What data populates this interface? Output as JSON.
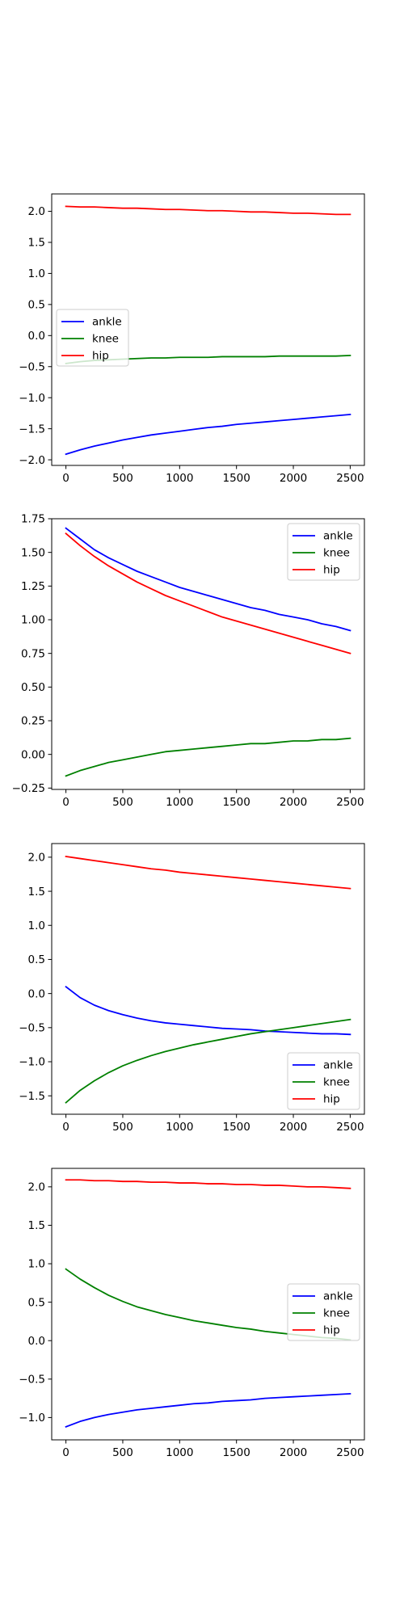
{
  "chart_data": [
    {
      "type": "line",
      "title": "",
      "xlabel": "",
      "ylabel": "",
      "xlim": [
        -125,
        2625
      ],
      "ylim": [
        -2.09,
        2.28
      ],
      "xticks": [
        0,
        500,
        1000,
        1500,
        2000,
        2500
      ],
      "yticks": [
        -2.0,
        -1.5,
        -1.0,
        -0.5,
        0.0,
        0.5,
        1.0,
        1.5,
        2.0
      ],
      "ytick_labels": [
        "−2.0",
        "−1.5",
        "−1.0",
        "−0.5",
        "0.0",
        "0.5",
        "1.0",
        "1.5",
        "2.0"
      ],
      "legend_position": "center-left",
      "grid": false,
      "x": [
        0,
        125,
        250,
        375,
        500,
        625,
        750,
        875,
        1000,
        1125,
        1250,
        1375,
        1500,
        1625,
        1750,
        1875,
        2000,
        2125,
        2250,
        2375,
        2500
      ],
      "series": [
        {
          "name": "ankle",
          "color": "#0000ff",
          "values": [
            -1.91,
            -1.84,
            -1.78,
            -1.73,
            -1.68,
            -1.64,
            -1.6,
            -1.57,
            -1.54,
            -1.51,
            -1.48,
            -1.46,
            -1.43,
            -1.41,
            -1.39,
            -1.37,
            -1.35,
            -1.33,
            -1.31,
            -1.29,
            -1.27
          ]
        },
        {
          "name": "knee",
          "color": "#008000",
          "values": [
            -0.45,
            -0.42,
            -0.4,
            -0.39,
            -0.38,
            -0.37,
            -0.36,
            -0.36,
            -0.35,
            -0.35,
            -0.35,
            -0.34,
            -0.34,
            -0.34,
            -0.34,
            -0.33,
            -0.33,
            -0.33,
            -0.33,
            -0.33,
            -0.32
          ]
        },
        {
          "name": "hip",
          "color": "#ff0000",
          "values": [
            2.08,
            2.07,
            2.07,
            2.06,
            2.05,
            2.05,
            2.04,
            2.03,
            2.03,
            2.02,
            2.01,
            2.01,
            2.0,
            1.99,
            1.99,
            1.98,
            1.97,
            1.97,
            1.96,
            1.95,
            1.95
          ]
        }
      ]
    },
    {
      "type": "line",
      "title": "",
      "xlabel": "",
      "ylabel": "",
      "xlim": [
        -125,
        2625
      ],
      "ylim": [
        -0.26,
        1.75
      ],
      "xticks": [
        0,
        500,
        1000,
        1500,
        2000,
        2500
      ],
      "yticks": [
        -0.25,
        0.0,
        0.25,
        0.5,
        0.75,
        1.0,
        1.25,
        1.5,
        1.75
      ],
      "ytick_labels": [
        "−0.25",
        "0.00",
        "0.25",
        "0.50",
        "0.75",
        "1.00",
        "1.25",
        "1.50",
        "1.75"
      ],
      "legend_position": "upper-right",
      "grid": false,
      "x": [
        0,
        125,
        250,
        375,
        500,
        625,
        750,
        875,
        1000,
        1125,
        1250,
        1375,
        1500,
        1625,
        1750,
        1875,
        2000,
        2125,
        2250,
        2375,
        2500
      ],
      "series": [
        {
          "name": "ankle",
          "color": "#0000ff",
          "values": [
            1.68,
            1.6,
            1.52,
            1.46,
            1.41,
            1.36,
            1.32,
            1.28,
            1.24,
            1.21,
            1.18,
            1.15,
            1.12,
            1.09,
            1.07,
            1.04,
            1.02,
            1.0,
            0.97,
            0.95,
            0.92
          ]
        },
        {
          "name": "knee",
          "color": "#008000",
          "values": [
            -0.16,
            -0.12,
            -0.09,
            -0.06,
            -0.04,
            -0.02,
            0.0,
            0.02,
            0.03,
            0.04,
            0.05,
            0.06,
            0.07,
            0.08,
            0.08,
            0.09,
            0.1,
            0.1,
            0.11,
            0.11,
            0.12
          ]
        },
        {
          "name": "hip",
          "color": "#ff0000",
          "values": [
            1.64,
            1.55,
            1.47,
            1.4,
            1.34,
            1.28,
            1.23,
            1.18,
            1.14,
            1.1,
            1.06,
            1.02,
            0.99,
            0.96,
            0.93,
            0.9,
            0.87,
            0.84,
            0.81,
            0.78,
            0.75
          ]
        }
      ]
    },
    {
      "type": "line",
      "title": "",
      "xlabel": "",
      "ylabel": "",
      "xlim": [
        -125,
        2625
      ],
      "ylim": [
        -1.77,
        2.2
      ],
      "xticks": [
        0,
        500,
        1000,
        1500,
        2000,
        2500
      ],
      "yticks": [
        -1.5,
        -1.0,
        -0.5,
        0.0,
        0.5,
        1.0,
        1.5,
        2.0
      ],
      "ytick_labels": [
        "−1.5",
        "−1.0",
        "−0.5",
        "0.0",
        "0.5",
        "1.0",
        "1.5",
        "2.0"
      ],
      "legend_position": "lower-right",
      "grid": false,
      "x": [
        0,
        125,
        250,
        375,
        500,
        625,
        750,
        875,
        1000,
        1125,
        1250,
        1375,
        1500,
        1625,
        1750,
        1875,
        2000,
        2125,
        2250,
        2375,
        2500
      ],
      "series": [
        {
          "name": "ankle",
          "color": "#0000ff",
          "values": [
            0.1,
            -0.06,
            -0.17,
            -0.25,
            -0.31,
            -0.36,
            -0.4,
            -0.43,
            -0.45,
            -0.47,
            -0.49,
            -0.51,
            -0.52,
            -0.53,
            -0.55,
            -0.56,
            -0.57,
            -0.58,
            -0.59,
            -0.59,
            -0.6
          ]
        },
        {
          "name": "knee",
          "color": "#008000",
          "values": [
            -1.6,
            -1.42,
            -1.28,
            -1.16,
            -1.06,
            -0.98,
            -0.91,
            -0.85,
            -0.8,
            -0.75,
            -0.71,
            -0.67,
            -0.63,
            -0.59,
            -0.56,
            -0.53,
            -0.5,
            -0.47,
            -0.44,
            -0.41,
            -0.38
          ]
        },
        {
          "name": "hip",
          "color": "#ff0000",
          "values": [
            2.01,
            1.98,
            1.95,
            1.92,
            1.89,
            1.86,
            1.83,
            1.81,
            1.78,
            1.76,
            1.74,
            1.72,
            1.7,
            1.68,
            1.66,
            1.64,
            1.62,
            1.6,
            1.58,
            1.56,
            1.54
          ]
        }
      ]
    },
    {
      "type": "line",
      "title": "",
      "xlabel": "",
      "ylabel": "",
      "xlim": [
        -125,
        2625
      ],
      "ylim": [
        -1.29,
        2.24
      ],
      "xticks": [
        0,
        500,
        1000,
        1500,
        2000,
        2500
      ],
      "yticks": [
        -1.0,
        -0.5,
        0.0,
        0.5,
        1.0,
        1.5,
        2.0
      ],
      "ytick_labels": [
        "−1.0",
        "−0.5",
        "0.0",
        "0.5",
        "1.0",
        "1.5",
        "2.0"
      ],
      "legend_position": "center-right",
      "grid": false,
      "x": [
        0,
        125,
        250,
        375,
        500,
        625,
        750,
        875,
        1000,
        1125,
        1250,
        1375,
        1500,
        1625,
        1750,
        1875,
        2000,
        2125,
        2250,
        2375,
        2500
      ],
      "series": [
        {
          "name": "ankle",
          "color": "#0000ff",
          "values": [
            -1.12,
            -1.05,
            -1.0,
            -0.96,
            -0.93,
            -0.9,
            -0.88,
            -0.86,
            -0.84,
            -0.82,
            -0.81,
            -0.79,
            -0.78,
            -0.77,
            -0.75,
            -0.74,
            -0.73,
            -0.72,
            -0.71,
            -0.7,
            -0.69
          ]
        },
        {
          "name": "knee",
          "color": "#008000",
          "values": [
            0.93,
            0.8,
            0.69,
            0.59,
            0.51,
            0.44,
            0.39,
            0.34,
            0.3,
            0.26,
            0.23,
            0.2,
            0.17,
            0.15,
            0.12,
            0.1,
            0.08,
            0.06,
            0.04,
            0.03,
            0.01
          ]
        },
        {
          "name": "hip",
          "color": "#ff0000",
          "values": [
            2.09,
            2.09,
            2.08,
            2.08,
            2.07,
            2.07,
            2.06,
            2.06,
            2.05,
            2.05,
            2.04,
            2.04,
            2.03,
            2.03,
            2.02,
            2.02,
            2.01,
            2.0,
            2.0,
            1.99,
            1.98
          ]
        }
      ]
    }
  ]
}
